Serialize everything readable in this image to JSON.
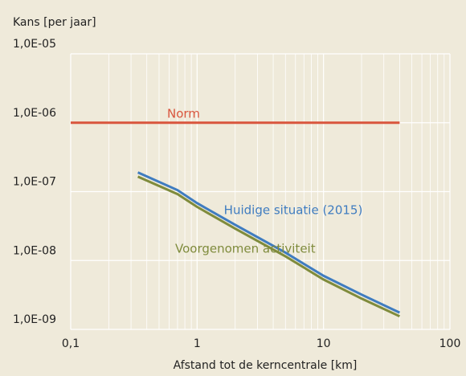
{
  "chart_data": {
    "type": "line",
    "title": "Kans  [per jaar]",
    "x_label": "Afstand tot de kerncentrale [km]",
    "x_log": true,
    "y_log": true,
    "grid": true,
    "xlim": [
      0.1,
      100
    ],
    "ylim": [
      1e-09,
      1e-05
    ],
    "xticks": [
      {
        "value": 0.1,
        "label": "0,1"
      },
      1,
      10,
      100
    ],
    "xminorticks": [
      0.2,
      0.3,
      0.4,
      0.5,
      0.6,
      0.7,
      0.8,
      0.9,
      2,
      3,
      4,
      5,
      6,
      7,
      8,
      9,
      20,
      30,
      40,
      50,
      60,
      70,
      80,
      90
    ],
    "yticks": [
      {
        "value": 1e-09,
        "label": "1,0E-09"
      },
      {
        "value": 1e-08,
        "label": "1,0E-08"
      },
      {
        "value": 1e-07,
        "label": "1,0E-07"
      },
      {
        "value": 1e-06,
        "label": "1,0E-06"
      },
      {
        "value": 1e-05,
        "label": "1,0E-05"
      }
    ],
    "series": [
      {
        "name": "Norm",
        "color": "#d9553d",
        "x": [
          0.1,
          40
        ],
        "values": [
          1e-06,
          1e-06
        ]
      },
      {
        "name": "Huidige situatie (2015)",
        "color": "#3f7cc0",
        "x": [
          0.34,
          0.7,
          1,
          2,
          5,
          10,
          20,
          40
        ],
        "values": [
          1.9e-07,
          1.05e-07,
          6.8e-08,
          3.3e-08,
          1.3e-08,
          6e-09,
          3.2e-09,
          1.75e-09
        ]
      },
      {
        "name": "Voorgenomen activiteit",
        "color": "#7f8b3c",
        "x": [
          0.34,
          0.7,
          1,
          2,
          5,
          10,
          20,
          40
        ],
        "values": [
          1.65e-07,
          9.2e-08,
          6e-08,
          2.9e-08,
          1.15e-08,
          5.3e-09,
          2.8e-09,
          1.55e-09
        ]
      }
    ]
  }
}
